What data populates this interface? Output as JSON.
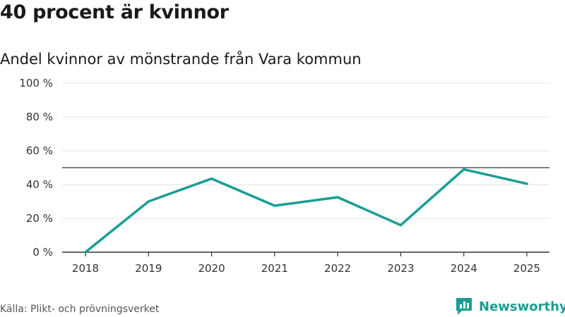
{
  "chart_data": {
    "type": "line",
    "title": "40 procent är kvinnor",
    "subtitle": "Andel kvinnor av mönstrande från Vara kommun",
    "categories": [
      "2018",
      "2019",
      "2020",
      "2021",
      "2022",
      "2023",
      "2024",
      "2025"
    ],
    "series": [
      {
        "name": "Andel kvinnor",
        "values": [
          0,
          30,
          43.5,
          27.5,
          32.5,
          16,
          49,
          40.5
        ]
      }
    ],
    "reference_line": 50,
    "ylim": [
      0,
      100
    ],
    "yticks": [
      0,
      20,
      40,
      60,
      80,
      100
    ],
    "ytick_labels": [
      "0 %",
      "20 %",
      "40 %",
      "60 %",
      "80 %",
      "100 %"
    ],
    "xlabel": "",
    "ylabel": "",
    "grid": true
  },
  "footer": {
    "source": "Källa: Plikt- och prövningsverket",
    "brand": "Newsworthy"
  },
  "colors": {
    "line": "#1a9e94",
    "reference": "#555555",
    "grid": "#e3e3e3",
    "axis": "#333333",
    "brand": "#1a9e94"
  },
  "icons": {
    "brand_logo": "newsworthy-logo-icon"
  }
}
